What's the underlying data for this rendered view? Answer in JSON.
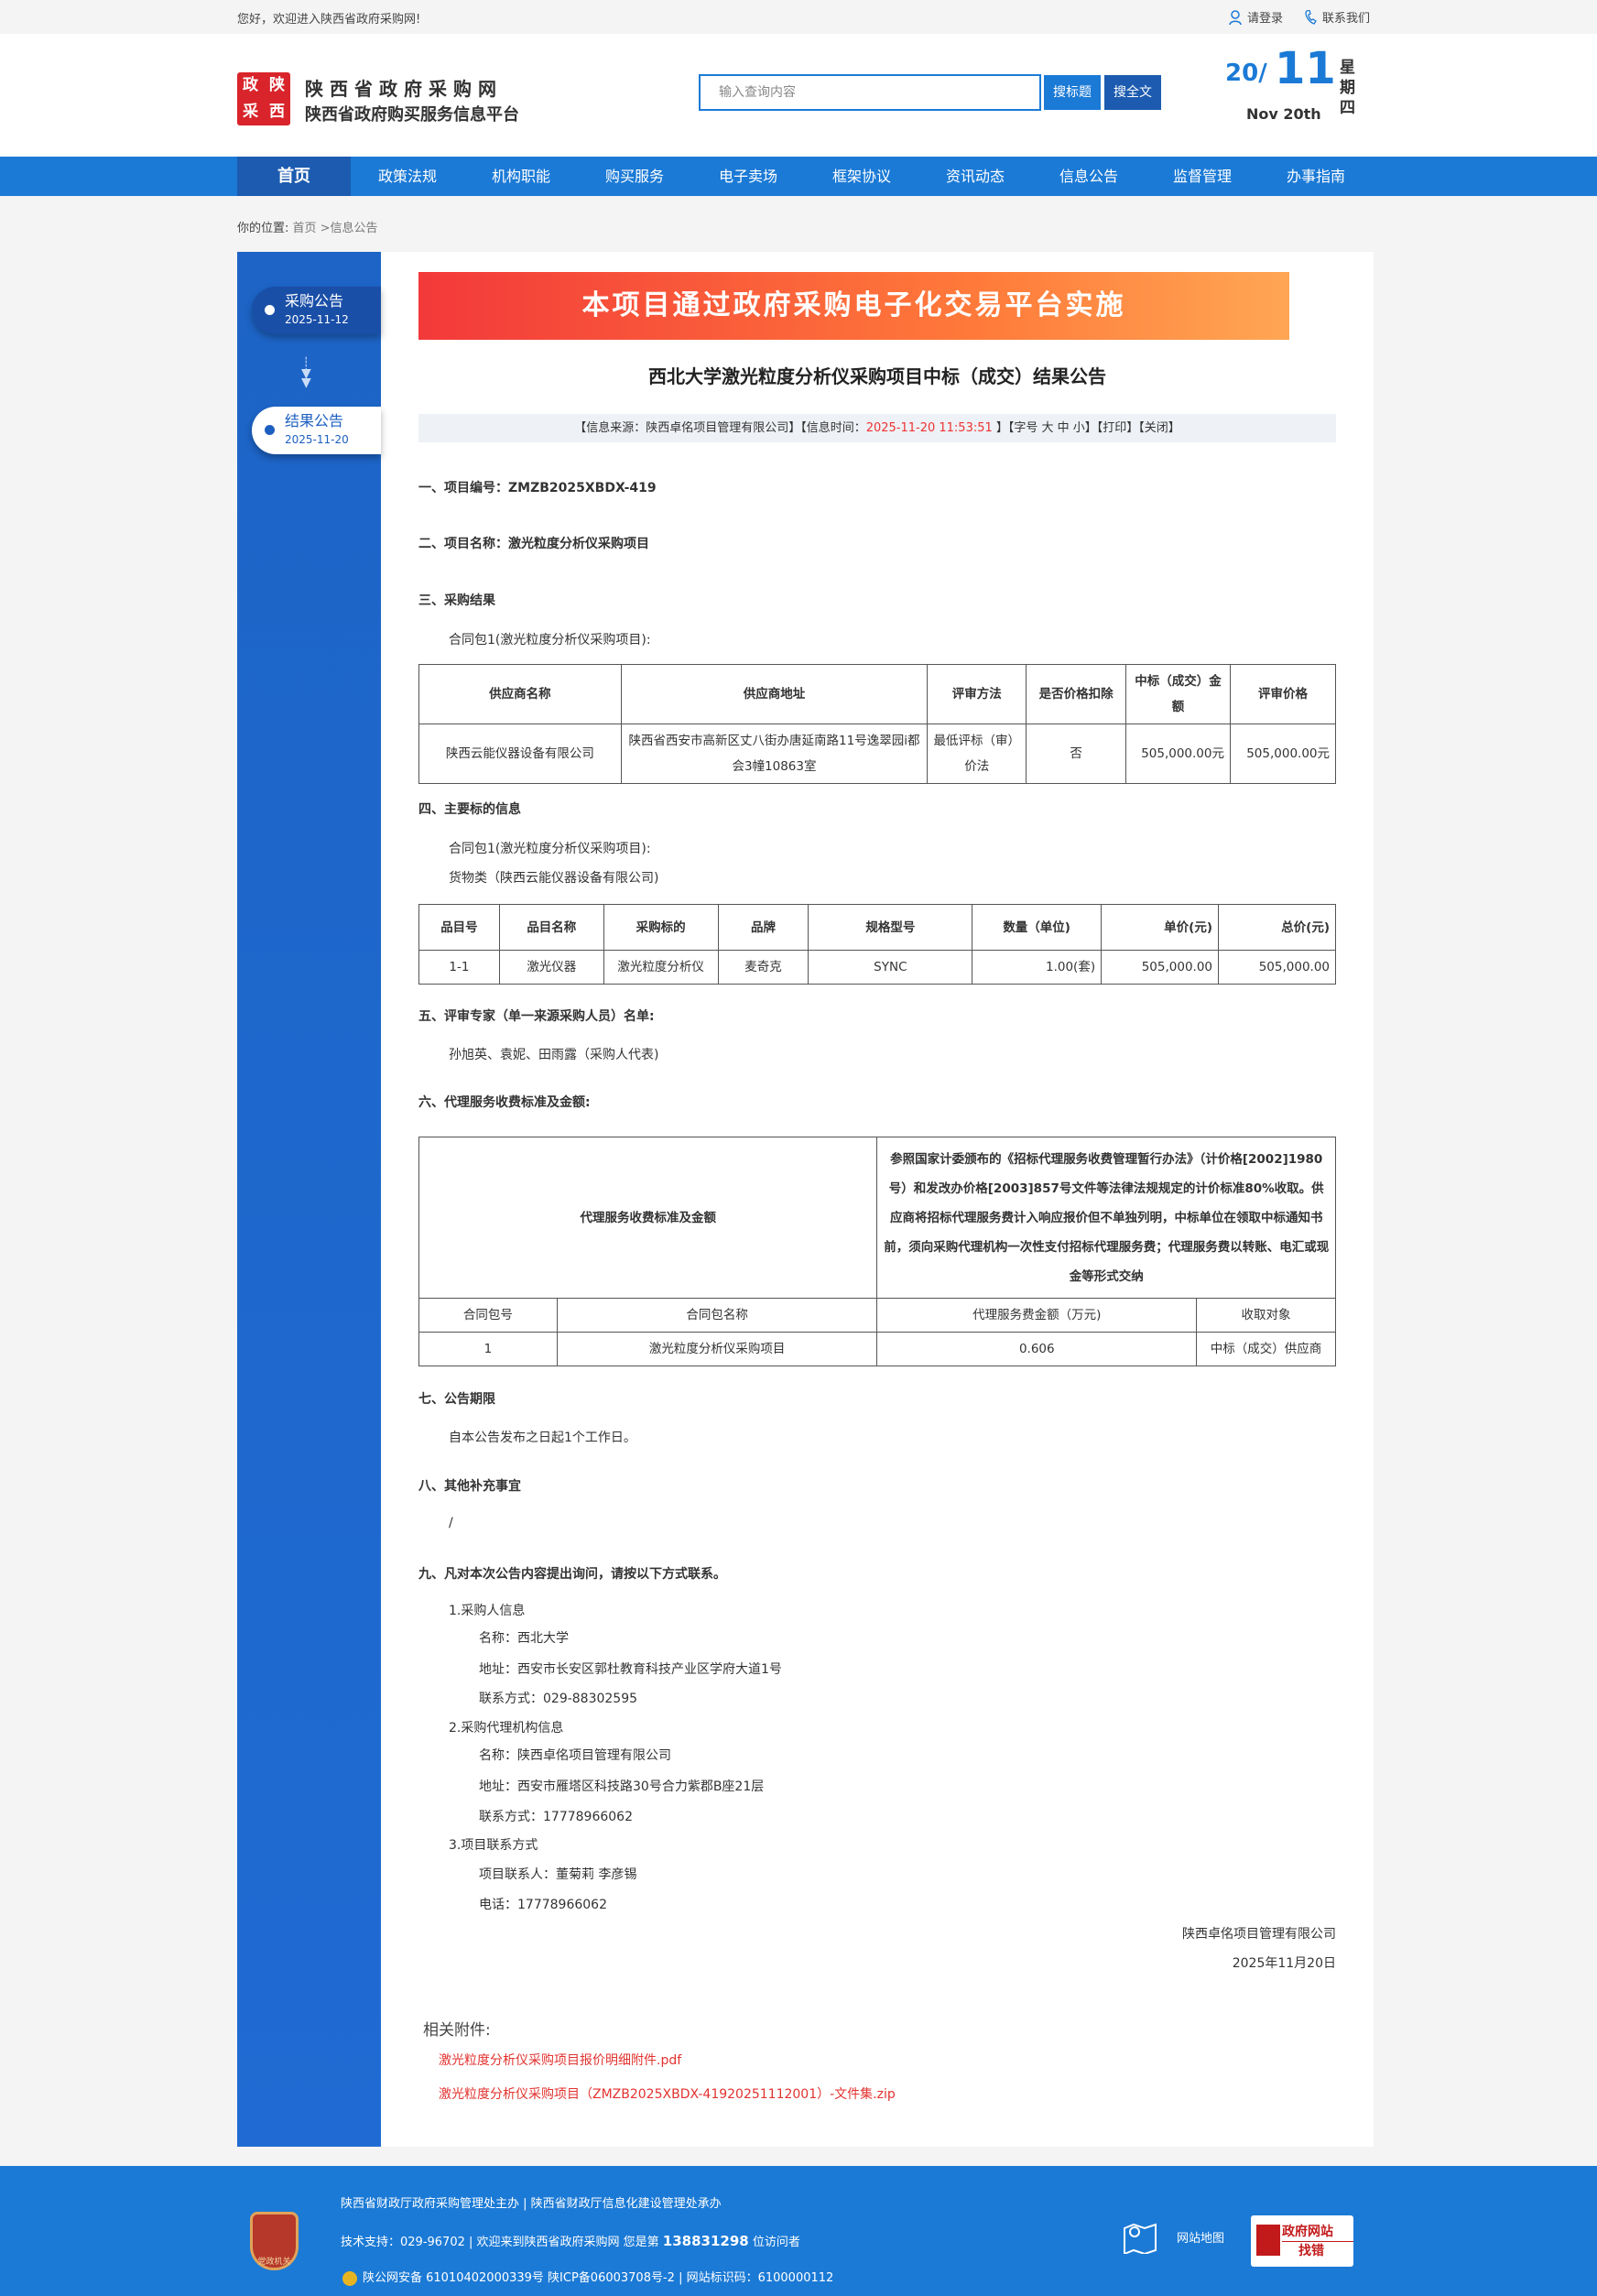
{
  "topbar": {
    "welcome": "您好，欢迎进入陕西省政府采购网!",
    "login": "请登录",
    "contact": "联系我们"
  },
  "header": {
    "logo_chars": [
      "政",
      "陕",
      "采",
      "西"
    ],
    "site_name": "陕西省政府采购网",
    "site_sub": "陕西省政府购买服务信息平台",
    "search_placeholder": "输入查询内容",
    "search_title_btn": "搜标题",
    "search_full_btn": "搜全文",
    "date_day": "20",
    "date_sep": "/",
    "date_month": "11",
    "date_en": "Nov 20th",
    "weekday": "星期四"
  },
  "nav": [
    "首页",
    "政策法规",
    "机构职能",
    "购买服务",
    "电子卖场",
    "框架协议",
    "资讯动态",
    "信息公告",
    "监督管理",
    "办事指南"
  ],
  "breadcrumb": {
    "label": "你的位置:",
    "path": "首页 >信息公告"
  },
  "sidebar": {
    "steps": [
      {
        "label": "采购公告",
        "date": "2025-11-12"
      },
      {
        "label": "结果公告",
        "date": "2025-11-20"
      }
    ]
  },
  "article": {
    "banner": "本项目通过政府采购电子化交易平台实施",
    "title": "西北大学激光粒度分析仪采购项目中标（成交）结果公告",
    "info": {
      "source": "【信息来源：陕西卓佲项目管理有限公司】【信息时间：",
      "time": "2025-11-20 11:53:51",
      "rest": " 】【字号 大 中 小】【打印】【关闭】"
    },
    "s1": "一、项目编号：ZMZB2025XBDX-419",
    "s2": "二、项目名称：激光粒度分析仪采购项目",
    "s3": "三、采购结果",
    "pkg": "合同包1(激光粒度分析仪采购项目):",
    "t1": {
      "headers": [
        "供应商名称",
        "供应商地址",
        "评审方法",
        "是否价格扣除",
        "中标（成交）金额",
        "评审价格"
      ],
      "row": [
        "陕西云能仪器设备有限公司",
        "陕西省西安市高新区丈八街办唐延南路11号逸翠园i都会3幢10863室",
        "最低评标（审）价法",
        "否",
        "505,000.00元",
        "505,000.00元"
      ]
    },
    "s4": "四、主要标的信息",
    "goods": "货物类（陕西云能仪器设备有限公司)",
    "t2": {
      "headers": [
        "品目号",
        "品目名称",
        "采购标的",
        "品牌",
        "规格型号",
        "数量（单位)",
        "单价(元)",
        "总价(元)"
      ],
      "row": [
        "1-1",
        "激光仪器",
        "激光粒度分析仪",
        "麦奇克",
        "SYNC",
        "1.00(套)",
        "505,000.00",
        "505,000.00"
      ]
    },
    "s5": "五、评审专家（单一来源采购人员）名单:",
    "experts": "孙旭英、袁妮、田雨露（采购人代表)",
    "s6": "六、代理服务收费标准及金额:",
    "t3": {
      "label": "代理服务收费标准及金额",
      "desc": "参照国家计委颁布的《招标代理服务收费管理暂行办法》（计价格[2002]1980号）和发改办价格[2003]857号文件等法律法规规定的计价标准80%收取。供应商将招标代理服务费计入响应报价但不单独列明，中标单位在领取中标通知书前，须向采购代理机构一次性支付招标代理服务费；代理服务费以转账、电汇或现金等形式交纳",
      "headers": [
        "合同包号",
        "合同包名称",
        "代理服务费金额（万元)",
        "收取对象"
      ],
      "row": [
        "1",
        "激光粒度分析仪采购项目",
        "0.606",
        "中标（成交）供应商"
      ]
    },
    "s7": "七、公告期限",
    "period": "自本公告发布之日起1个工作日。",
    "s8": "八、其他补充事宜",
    "other": "/",
    "s9": "九、凡对本次公告内容提出询问，请按以下方式联系。",
    "c1": "1.采购人信息",
    "c1_name": "名称：西北大学",
    "c1_addr": "地址：西安市长安区郭杜教育科技产业区学府大道1号",
    "c1_tel": "联系方式：029-88302595",
    "c2": "2.采购代理机构信息",
    "c2_name": "名称：陕西卓佲项目管理有限公司",
    "c2_addr": "地址：西安市雁塔区科技路30号合力紫郡B座21层",
    "c2_tel": "联系方式：17778966062",
    "c3": "3.项目联系方式",
    "c3_person": "项目联系人：董菊莉 李彦锡",
    "c3_tel": "电话：17778966062",
    "sign_org": "陕西卓佲项目管理有限公司",
    "sign_date": "2025年11月20日",
    "attach_label": "相关附件:",
    "attachments": [
      "激光粒度分析仪采购项目报价明细附件.pdf",
      "激光粒度分析仪采购项目（ZMZB2025XBDX-41920251112001）-文件集.zip"
    ]
  },
  "footer": {
    "emblem_text": "党政机关",
    "line1": "陕西省财政厅政府采购管理处主办 | 陕西省财政厅信息化建设管理处承办",
    "line2_a": "技术支持：029-96702 | 欢迎来到陕西省政府采购网 您是第 ",
    "visitors": "138831298",
    "line2_b": " 位访问者",
    "line3": "陕公网安备 61010402000339号   陕ICP备06003708号-2  |  网站标识码：6100000112",
    "sitemap": "网站地图",
    "zc_top": "政府网站",
    "zc_bottom": "找错"
  },
  "colors": {
    "primary": "#1b7ad6",
    "nav_active": "#1c5bb0",
    "red": "#e2322f"
  }
}
